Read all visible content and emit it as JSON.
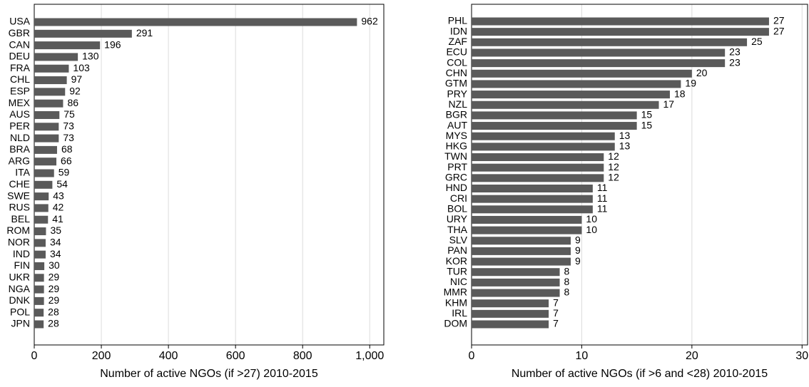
{
  "chart_data": [
    {
      "type": "bar",
      "orientation": "horizontal",
      "color": "#5a5a5a",
      "grid": true,
      "x_label": "Number of active NGOs (if >27) 2010-2015",
      "categories": [
        "USA",
        "GBR",
        "CAN",
        "DEU",
        "FRA",
        "CHL",
        "ESP",
        "MEX",
        "AUS",
        "PER",
        "NLD",
        "BRA",
        "ARG",
        "ITA",
        "CHE",
        "SWE",
        "RUS",
        "BEL",
        "ROM",
        "NOR",
        "IND",
        "FIN",
        "UKR",
        "NGA",
        "DNK",
        "POL",
        "JPN"
      ],
      "values": [
        962,
        291,
        196,
        130,
        103,
        97,
        92,
        86,
        75,
        73,
        73,
        68,
        66,
        59,
        54,
        43,
        42,
        41,
        35,
        34,
        34,
        30,
        29,
        29,
        29,
        28,
        28
      ],
      "xlim": [
        0,
        1042
      ],
      "xticks": [
        0,
        200,
        400,
        600,
        800,
        {
          "value": 1000,
          "label": "1,000"
        }
      ]
    },
    {
      "type": "bar",
      "orientation": "horizontal",
      "color": "#5a5a5a",
      "grid": true,
      "x_label": "Number of active NGOs (if >6 and <28) 2010-2015",
      "categories": [
        "PHL",
        "IDN",
        "ZAF",
        "ECU",
        "COL",
        "CHN",
        "GTM",
        "PRY",
        "NZL",
        "BGR",
        "AUT",
        "MYS",
        "HKG",
        "TWN",
        "PRT",
        "GRC",
        "HND",
        "CRI",
        "BOL",
        "URY",
        "THA",
        "SLV",
        "PAN",
        "KOR",
        "TUR",
        "NIC",
        "MMR",
        "KHM",
        "IRL",
        "DOM"
      ],
      "values": [
        27,
        27,
        25,
        23,
        23,
        20,
        19,
        18,
        17,
        15,
        15,
        13,
        13,
        12,
        12,
        12,
        11,
        11,
        11,
        10,
        10,
        9,
        9,
        9,
        8,
        8,
        8,
        7,
        7,
        7
      ],
      "xlim": [
        0,
        30.5
      ],
      "xticks": [
        0,
        10,
        20,
        30
      ]
    }
  ]
}
